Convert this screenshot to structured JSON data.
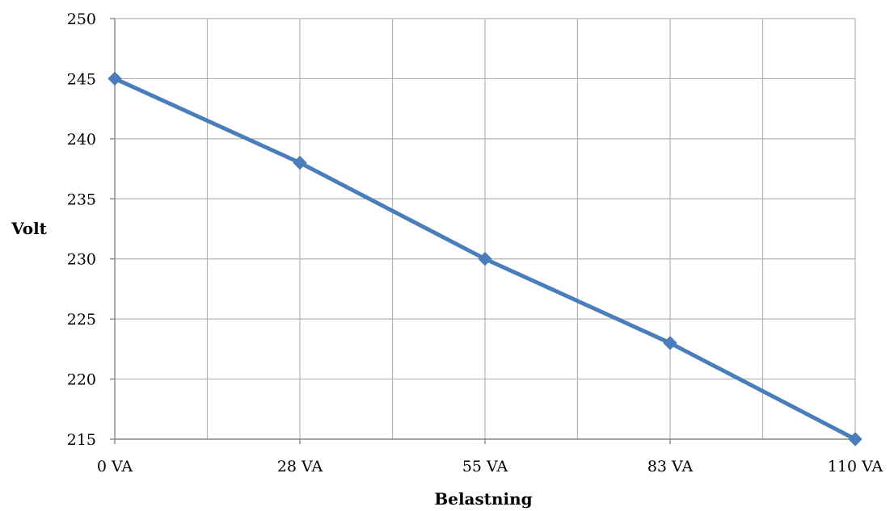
{
  "chart_data": {
    "type": "line",
    "categories": [
      "0 VA",
      "28 VA",
      "55 VA",
      "83 VA",
      "110 VA"
    ],
    "series": [
      {
        "values": [
          245,
          238,
          230,
          223,
          215
        ],
        "color": "#4a7ebb",
        "marker": "diamond"
      }
    ],
    "xlabel": "Belastning",
    "ylabel": "Volt",
    "ylim": [
      215,
      250
    ],
    "y_ticks": [
      215,
      220,
      225,
      230,
      235,
      240,
      245,
      250
    ],
    "grid": true,
    "legend": "none"
  }
}
